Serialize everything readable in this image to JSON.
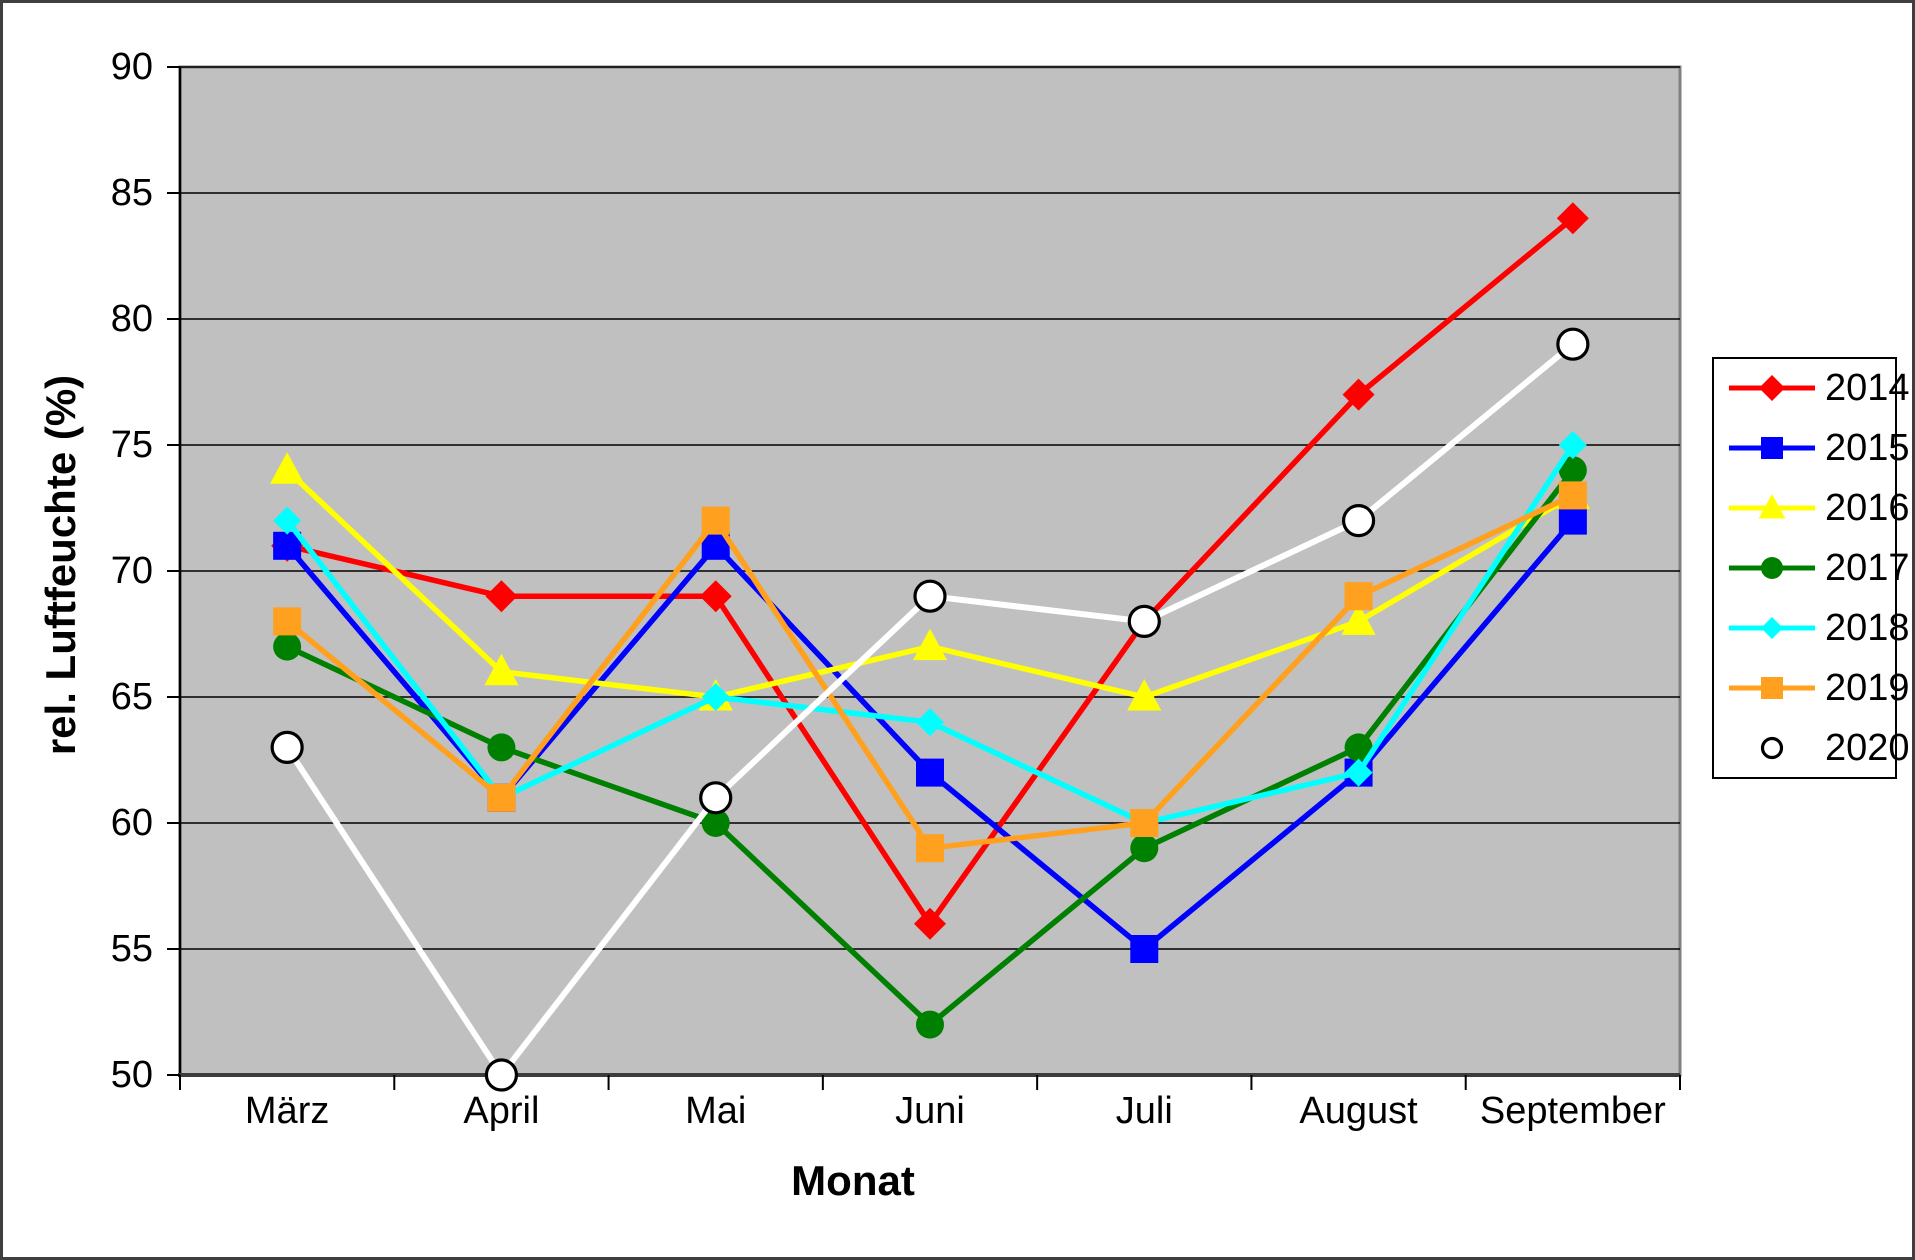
{
  "chart_data": {
    "type": "line",
    "title": "",
    "xlabel": "Monat",
    "ylabel": "rel. Luftfeuchte (%)",
    "categories": [
      "März",
      "April",
      "Mai",
      "Juni",
      "Juli",
      "August",
      "September"
    ],
    "y_ticks": [
      50,
      55,
      60,
      65,
      70,
      75,
      80,
      85,
      90
    ],
    "ylim": [
      50,
      90
    ],
    "grid": "horizontal",
    "plot_bg_color": "#c0c0c0",
    "gridline_color": "#000000",
    "legend_position": "right",
    "legend_border_color": "#000000",
    "series": [
      {
        "name": "2014",
        "color": "#ff0000",
        "marker": "diamond",
        "marker_size": 16,
        "values": [
          71,
          69,
          69,
          56,
          68,
          77,
          84
        ]
      },
      {
        "name": "2015",
        "color": "#0000ff",
        "marker": "square",
        "marker_size": 14,
        "values": [
          71,
          61,
          71,
          62,
          55,
          62,
          72
        ]
      },
      {
        "name": "2016",
        "color": "#ffff00",
        "marker": "triangle",
        "marker_size": 18,
        "values": [
          74,
          66,
          65,
          67,
          65,
          68,
          73
        ]
      },
      {
        "name": "2017",
        "color": "#008000",
        "marker": "circle",
        "marker_size": 14,
        "values": [
          67,
          63,
          60,
          52,
          59,
          63,
          74
        ]
      },
      {
        "name": "2018",
        "color": "#00ffff",
        "marker": "diamond",
        "marker_size": 14,
        "values": [
          72,
          61,
          65,
          64,
          60,
          62,
          75
        ]
      },
      {
        "name": "2019",
        "color": "#ffa01e",
        "marker": "square",
        "marker_size": 14,
        "values": [
          68,
          61,
          72,
          59,
          60,
          69,
          73
        ]
      },
      {
        "name": "2020",
        "color": "#ffffff",
        "marker": "open-circle",
        "marker_size": 15,
        "marker_outline": "#000000",
        "values": [
          63,
          50,
          61,
          69,
          68,
          72,
          79
        ]
      }
    ]
  }
}
